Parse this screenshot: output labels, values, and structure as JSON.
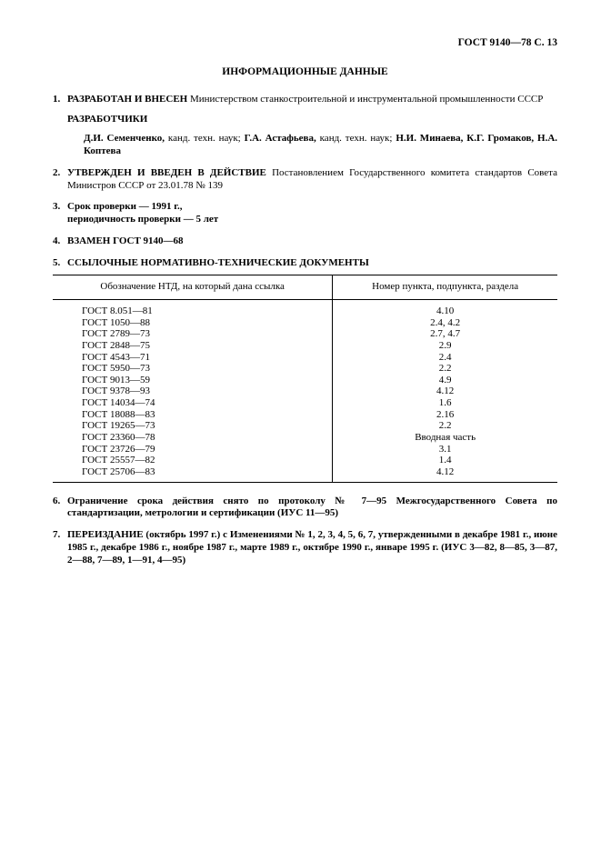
{
  "header_right": "ГОСТ 9140—78 С. 13",
  "title": "ИНФОРМАЦИОННЫЕ ДАННЫЕ",
  "items": {
    "i1": {
      "num": "1.",
      "lead": "РАЗРАБОТАН И ВНЕСЕН",
      "rest": " Министерством станкостроительной и инструментальной промышленности СССР"
    },
    "dev_label": "РАЗРАБОТЧИКИ",
    "names_parts": {
      "n1": "Д.И. Семенченко,",
      "r1": " канд. техн. наук; ",
      "n2": "Г.А. Астафьева,",
      "r2": " канд. техн. наук; ",
      "n3": "Н.И. Минаева, К.Г. Громаков, Н.А. Коптева"
    },
    "i2": {
      "num": "2.",
      "lead": "УТВЕРЖДЕН И ВВЕДЕН В ДЕЙСТВИЕ",
      "rest": " Постановлением Государственного комитета стандартов Совета Министров СССР от 23.01.78 № 139"
    },
    "i3": {
      "num": "3.",
      "l1": "Срок проверки — 1991 г.,",
      "l2": "периодичность проверки — 5 лет"
    },
    "i4": {
      "num": "4.",
      "text": "ВЗАМЕН ГОСТ 9140—68"
    },
    "i5": {
      "num": "5.",
      "text": "ССЫЛОЧНЫЕ НОРМАТИВНО-ТЕХНИЧЕСКИЕ ДОКУМЕНТЫ"
    },
    "i6": {
      "num": "6.",
      "text": "Ограничение срока действия снято по протоколу № 7—95 Межгосударственного Совета по стандартизации, метрологии и сертификации (ИУС 11—95)"
    },
    "i7": {
      "num": "7.",
      "lead": "ПЕРЕИЗДАНИЕ",
      "rest": " (октябрь 1997 г.) с Изменениями № 1, 2, 3, 4, 5, 6, 7, утвержденными в декабре 1981 г., июне 1985 г., декабре 1986 г., ноябре 1987 г., марте 1989 г., октябре 1990 г., январе 1995 г. (ИУС 3—82, 8—85, 3—87, 2—88, 7—89, 1—91, 4—95)"
    }
  },
  "table": {
    "h1": "Обозначение НТД, на который дана ссылка",
    "h2": "Номер пункта, подпункта, раздела",
    "rows": [
      {
        "a": "ГОСТ 8.051—81",
        "b": "4.10"
      },
      {
        "a": "ГОСТ 1050—88",
        "b": "2.4, 4.2"
      },
      {
        "a": "ГОСТ 2789—73",
        "b": "2.7, 4.7"
      },
      {
        "a": "ГОСТ 2848—75",
        "b": "2.9"
      },
      {
        "a": "ГОСТ 4543—71",
        "b": "2.4"
      },
      {
        "a": "ГОСТ 5950—73",
        "b": "2.2"
      },
      {
        "a": "ГОСТ 9013—59",
        "b": "4.9"
      },
      {
        "a": "ГОСТ 9378—93",
        "b": "4.12"
      },
      {
        "a": "ГОСТ 14034—74",
        "b": "1.6"
      },
      {
        "a": "ГОСТ 18088—83",
        "b": "2.16"
      },
      {
        "a": "ГОСТ 19265—73",
        "b": "2.2"
      },
      {
        "a": "ГОСТ 23360—78",
        "b": "Вводная часть"
      },
      {
        "a": "ГОСТ 23726—79",
        "b": "3.1"
      },
      {
        "a": "ГОСТ 25557—82",
        "b": "1.4"
      },
      {
        "a": "ГОСТ 25706—83",
        "b": "4.12"
      }
    ]
  }
}
